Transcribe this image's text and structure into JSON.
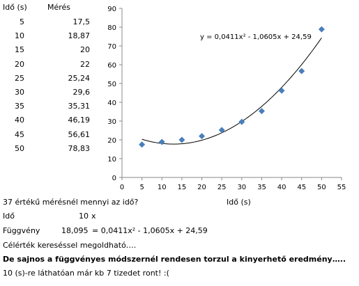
{
  "table": {
    "header_time": "Idő (s)",
    "header_measure": "Mérés",
    "rows": [
      {
        "t": "5",
        "m": "17,5"
      },
      {
        "t": "10",
        "m": "18,87"
      },
      {
        "t": "15",
        "m": "20"
      },
      {
        "t": "20",
        "m": "22"
      },
      {
        "t": "25",
        "m": "25,24"
      },
      {
        "t": "30",
        "m": "29,6"
      },
      {
        "t": "35",
        "m": "35,31"
      },
      {
        "t": "40",
        "m": "46,19"
      },
      {
        "t": "45",
        "m": "56,61"
      },
      {
        "t": "50",
        "m": "78,83"
      }
    ]
  },
  "chart_data": {
    "type": "scatter",
    "x": [
      5,
      10,
      15,
      20,
      25,
      30,
      35,
      40,
      45,
      50
    ],
    "y": [
      17.5,
      18.87,
      20,
      22,
      25.24,
      29.6,
      35.31,
      46.19,
      56.61,
      78.83
    ],
    "xlim": [
      0,
      55
    ],
    "ylim": [
      0,
      90
    ],
    "xticks": [
      "0",
      "5",
      "10",
      "15",
      "20",
      "25",
      "30",
      "35",
      "40",
      "45",
      "50",
      "55"
    ],
    "yticks": [
      "0",
      "10",
      "20",
      "30",
      "40",
      "50",
      "60",
      "70",
      "80",
      "90"
    ],
    "xlabel": "Idő (s)",
    "ylabel": "",
    "trendline": {
      "type": "polynomial-2",
      "coefficients": [
        0.0411,
        -1.0605,
        24.59
      ],
      "x_range": [
        5,
        50
      ],
      "equation_text": "y = 0,0411x² - 1,0605x + 24,59"
    },
    "marker_color": "#4a7ebb",
    "line_color": "#000000"
  },
  "text": {
    "question": "37 értékű mérésnél mennyi az idő?",
    "xlabel_line": "Idő (s)",
    "ido_label": "Idő",
    "ido_value": "10",
    "ido_x": "x",
    "fv_label": "Függvény",
    "fv_value": "18,095",
    "fv_formula": "= 0,0411x² - 1,0605x + 24,59",
    "celertek": "Célérték kereséssel megoldható….",
    "bold_line": "De sajnos a függvényes módszernél rendesen torzul a kinyerhető eredmény…..",
    "last_line": "10 (s)-re láthatóan már kb 7 tizedet ront! :("
  }
}
